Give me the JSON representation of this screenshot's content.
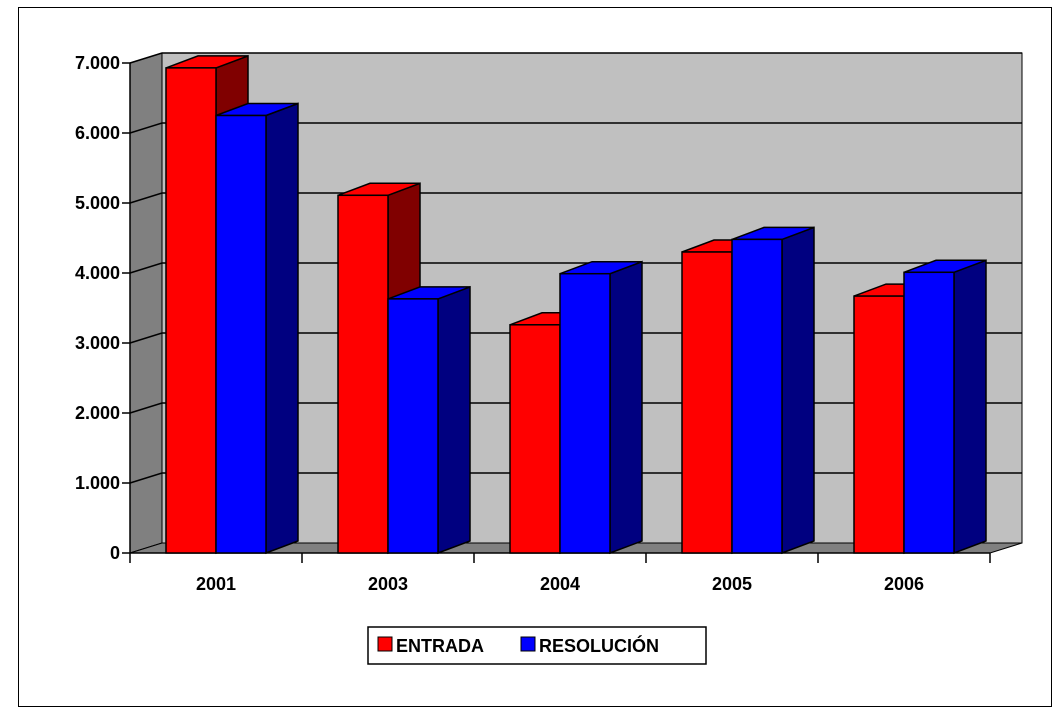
{
  "chart_data": {
    "type": "bar",
    "categories": [
      "2001",
      "2003",
      "2004",
      "2005",
      "2006"
    ],
    "series": [
      {
        "name": "ENTRADA",
        "values": [
          6930,
          5110,
          3260,
          4300,
          3670
        ],
        "color": "#ff0000"
      },
      {
        "name": "RESOLUCIÓN",
        "values": [
          6250,
          3630,
          3990,
          4480,
          4010
        ],
        "color": "#0000ff"
      }
    ],
    "yticks": [
      "0",
      "1.000",
      "2.000",
      "3.000",
      "4.000",
      "5.000",
      "6.000",
      "7.000"
    ],
    "ylim": [
      0,
      7000
    ],
    "grid": true,
    "legend": "bottom-center",
    "title": "",
    "xlabel": "",
    "ylabel": "",
    "colors": {
      "plot_back": "#c0c0c0",
      "floor": "#808080",
      "red_side": "#800000",
      "blue_side": "#000080"
    }
  }
}
